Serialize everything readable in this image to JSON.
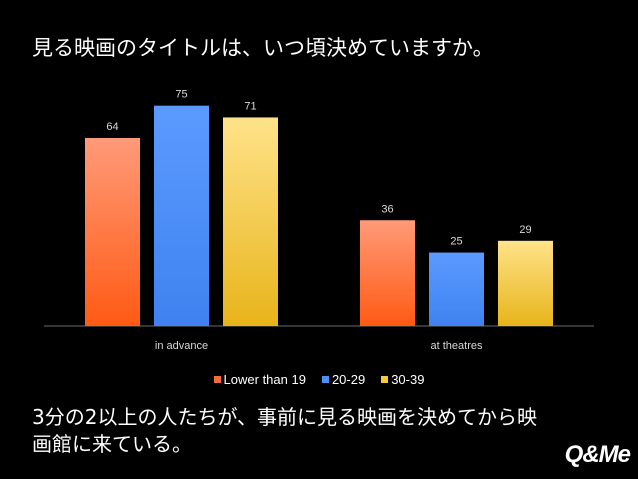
{
  "page": {
    "title": "見る映画のタイトルは、いつ頃決めていますか。",
    "footnote": "3分の2以上の人たちが、事前に見る映画を決めてから映画館に来ている。",
    "logo": "Q&Me"
  },
  "chart_data": {
    "type": "bar",
    "categories": [
      "in advance",
      "at theatres"
    ],
    "series": [
      {
        "name": "Lower than 19",
        "values": [
          64,
          36
        ],
        "color": "#f26b3a"
      },
      {
        "name": "20-29",
        "values": [
          75,
          25
        ],
        "color": "#4d8ff0"
      },
      {
        "name": "30-39",
        "values": [
          71,
          29
        ],
        "color": "#f5c842"
      }
    ],
    "ylim": [
      0,
      80
    ],
    "grid": false,
    "legend_position": "bottom"
  }
}
